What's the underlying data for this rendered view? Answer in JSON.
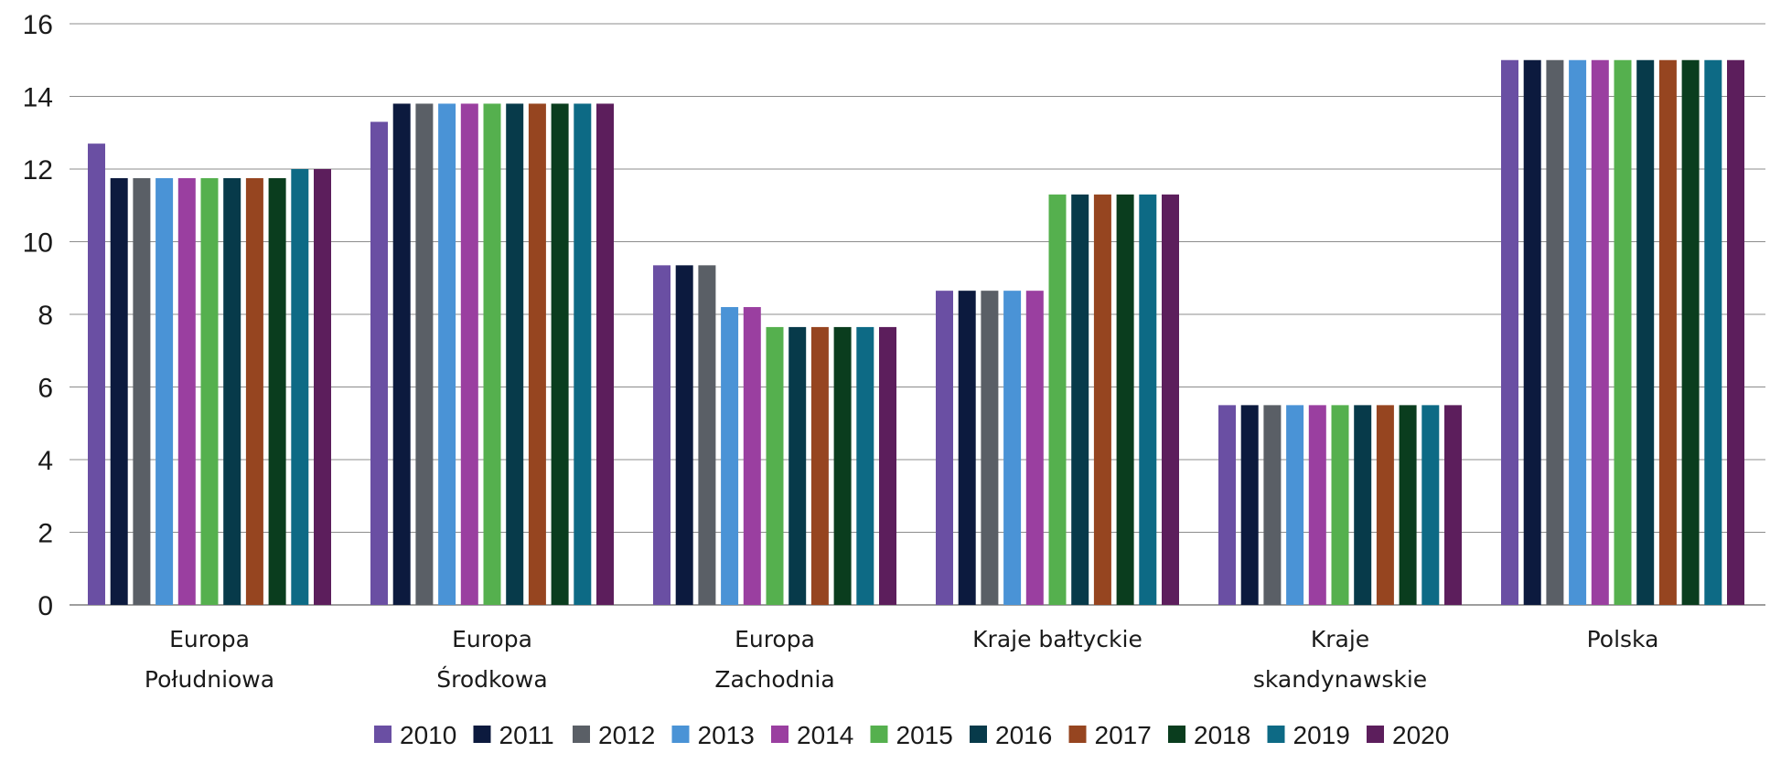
{
  "chart_data": {
    "type": "bar",
    "categories": [
      [
        "Europa",
        "Południowa"
      ],
      [
        "Europa",
        "Środkowa"
      ],
      [
        "Europa",
        "Zachodnia"
      ],
      [
        "Kraje bałtyckie"
      ],
      [
        "Kraje",
        "skandynawskie"
      ],
      [
        "Polska"
      ]
    ],
    "series": [
      {
        "name": "2010",
        "color": "#6a4fa3",
        "values": [
          12.7,
          13.3,
          9.35,
          8.65,
          5.5,
          15
        ]
      },
      {
        "name": "2011",
        "color": "#0c1a3e",
        "values": [
          11.75,
          13.8,
          9.35,
          8.65,
          5.5,
          15
        ]
      },
      {
        "name": "2012",
        "color": "#5a5f66",
        "values": [
          11.75,
          13.8,
          9.35,
          8.65,
          5.5,
          15
        ]
      },
      {
        "name": "2013",
        "color": "#4a93d6",
        "values": [
          11.75,
          13.8,
          8.2,
          8.65,
          5.5,
          15
        ]
      },
      {
        "name": "2014",
        "color": "#9a3fa0",
        "values": [
          11.75,
          13.8,
          8.2,
          8.65,
          5.5,
          15
        ]
      },
      {
        "name": "2015",
        "color": "#55b04e",
        "values": [
          11.75,
          13.8,
          7.65,
          11.3,
          5.5,
          15
        ]
      },
      {
        "name": "2016",
        "color": "#073a4a",
        "values": [
          11.75,
          13.8,
          7.65,
          11.3,
          5.5,
          15
        ]
      },
      {
        "name": "2017",
        "color": "#964520",
        "values": [
          11.75,
          13.8,
          7.65,
          11.3,
          5.5,
          15
        ]
      },
      {
        "name": "2018",
        "color": "#0a3d1e",
        "values": [
          11.75,
          13.8,
          7.65,
          11.3,
          5.5,
          15
        ]
      },
      {
        "name": "2019",
        "color": "#0d6a85",
        "values": [
          12.0,
          13.8,
          7.65,
          11.3,
          5.5,
          15
        ]
      },
      {
        "name": "2020",
        "color": "#5c1e5c",
        "values": [
          12.0,
          13.8,
          7.65,
          11.3,
          5.5,
          15
        ]
      }
    ],
    "ylim": [
      0,
      16
    ],
    "yticks": [
      "0",
      "2",
      "4",
      "6",
      "8",
      "10",
      "12",
      "14",
      "16"
    ],
    "grid": true,
    "legend_position": "bottom"
  }
}
